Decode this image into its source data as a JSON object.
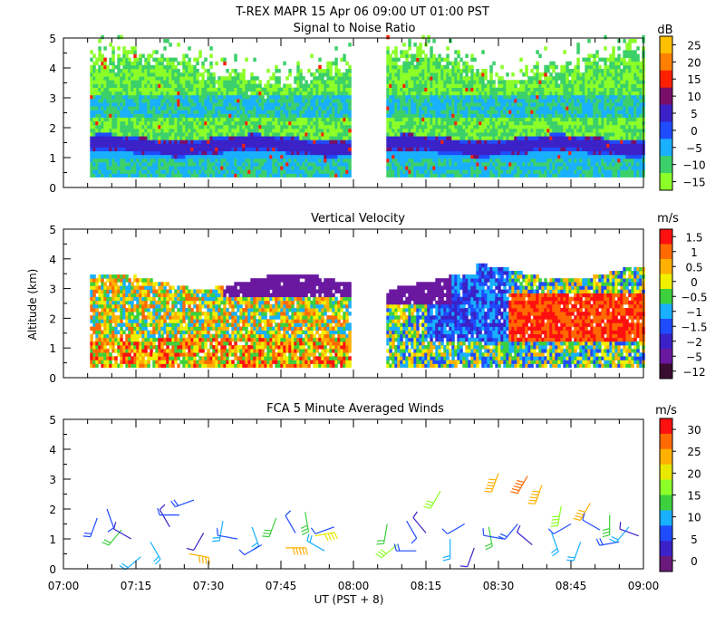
{
  "header": {
    "title": "T-REX   MAPR 15 Apr 06   09:00 UT   01:00   PST"
  },
  "chart_data": [
    {
      "type": "heatmap",
      "title": "Signal to Noise Ratio",
      "ylabel": "",
      "ylim": [
        0,
        5
      ],
      "yticks": [
        "0",
        "1",
        "2",
        "3",
        "4",
        "5"
      ],
      "colorbar": {
        "unit": "dB",
        "labels": [
          "25",
          "20",
          "15",
          "10",
          "5",
          "0",
          "−5",
          "−10",
          "−15"
        ],
        "colors": [
          "#ffc000",
          "#ff8000",
          "#ff2000",
          "#7a0f6a",
          "#3a22c8",
          "#1f4cff",
          "#18b0ff",
          "#3cd06a",
          "#8cff28"
        ]
      },
      "bands": [
        {
          "alt": 4.4,
          "color": "#8cff28"
        },
        {
          "alt": 3.6,
          "color": "#8cff28"
        },
        {
          "alt": 3.0,
          "color": "#3cd06a"
        },
        {
          "alt": 2.6,
          "color": "#18b0ff"
        },
        {
          "alt": 2.1,
          "color": "#8cff28"
        },
        {
          "alt": 1.7,
          "color": "#3cd06a"
        },
        {
          "alt": 1.5,
          "color": "#3a22c8"
        },
        {
          "alt": 1.25,
          "color": "#3a22c8"
        },
        {
          "alt": 0.95,
          "color": "#18b0ff"
        },
        {
          "alt": 0.6,
          "color": "#3cd06a"
        }
      ],
      "data_gaps": [
        [
          59.0,
          66.5
        ]
      ],
      "data_range_x": [
        5.5,
        120
      ]
    },
    {
      "type": "heatmap",
      "title": "Vertical Velocity",
      "ylabel": "Altitude (km)",
      "ylim": [
        0,
        5
      ],
      "yticks": [
        "0",
        "1",
        "2",
        "3",
        "4",
        "5"
      ],
      "colorbar": {
        "unit": "m/s",
        "labels": [
          "1.5",
          "1",
          "0.5",
          "0",
          "−0.5",
          "−1",
          "−1.5",
          "−2",
          "−5",
          "−12"
        ],
        "colors": [
          "#ff1010",
          "#ff6a00",
          "#ffb000",
          "#f0f000",
          "#3cd03c",
          "#18b0ff",
          "#1f4cff",
          "#3a22c8",
          "#6a18a0",
          "#3a0c30"
        ]
      },
      "data_gaps": [
        [
          59.0,
          66.5
        ]
      ],
      "data_range_x": [
        5.5,
        120
      ]
    },
    {
      "type": "scatter",
      "title": "FCA 5 Minute Averaged Winds",
      "xlabel": "UT  (PST + 8)",
      "ylim": [
        0,
        5
      ],
      "yticks": [
        "0",
        "1",
        "2",
        "3",
        "4",
        "5"
      ],
      "x_tick_labels": [
        "07:00",
        "07:15",
        "07:30",
        "07:45",
        "08:00",
        "08:15",
        "08:30",
        "08:45",
        "09:00"
      ],
      "xlim_minutes": [
        0,
        120
      ],
      "colorbar": {
        "unit": "m/s",
        "labels": [
          "30",
          "25",
          "20",
          "15",
          "10",
          "5",
          "0"
        ],
        "colors": [
          "#ff1010",
          "#ff6a00",
          "#ffb000",
          "#e8e800",
          "#8cff28",
          "#3cd03c",
          "#18b0ff",
          "#1f4cff",
          "#3a22c8",
          "#6a1a7a"
        ]
      },
      "wind_barbs": [
        {
          "t": 7,
          "alt": 1.7,
          "speed": 8,
          "dir": 200
        },
        {
          "t": 9,
          "alt": 2.0,
          "speed": 6,
          "dir": 160
        },
        {
          "t": 12,
          "alt": 1.3,
          "speed": 12,
          "dir": 220
        },
        {
          "t": 14,
          "alt": 1.0,
          "speed": 5,
          "dir": 300
        },
        {
          "t": 16,
          "alt": 0.4,
          "speed": 9,
          "dir": 230
        },
        {
          "t": 18,
          "alt": 0.9,
          "speed": 10,
          "dir": 150
        },
        {
          "t": 22,
          "alt": 1.4,
          "speed": 4,
          "dir": 330
        },
        {
          "t": 24,
          "alt": 1.8,
          "speed": 7,
          "dir": 270
        },
        {
          "t": 26,
          "alt": 0.5,
          "speed": 22,
          "dir": 100
        },
        {
          "t": 27,
          "alt": 2.3,
          "speed": 8,
          "dir": 250
        },
        {
          "t": 29,
          "alt": 1.2,
          "speed": 5,
          "dir": 210
        },
        {
          "t": 33,
          "alt": 1.6,
          "speed": 9,
          "dir": 190
        },
        {
          "t": 36,
          "alt": 1.0,
          "speed": 6,
          "dir": 280
        },
        {
          "t": 39,
          "alt": 1.4,
          "speed": 11,
          "dir": 160
        },
        {
          "t": 41,
          "alt": 0.8,
          "speed": 7,
          "dir": 240
        },
        {
          "t": 44,
          "alt": 1.7,
          "speed": 13,
          "dir": 200
        },
        {
          "t": 46,
          "alt": 0.7,
          "speed": 24,
          "dir": 90
        },
        {
          "t": 48,
          "alt": 1.2,
          "speed": 6,
          "dir": 330
        },
        {
          "t": 50,
          "alt": 1.9,
          "speed": 14,
          "dir": 170
        },
        {
          "t": 52,
          "alt": 1.1,
          "speed": 20,
          "dir": 80
        },
        {
          "t": 54,
          "alt": 0.6,
          "speed": 9,
          "dir": 300
        },
        {
          "t": 56,
          "alt": 1.4,
          "speed": 7,
          "dir": 250
        },
        {
          "t": 67,
          "alt": 1.5,
          "speed": 12,
          "dir": 190
        },
        {
          "t": 69,
          "alt": 0.8,
          "speed": 16,
          "dir": 230
        },
        {
          "t": 71,
          "alt": 1.6,
          "speed": 6,
          "dir": 150
        },
        {
          "t": 73,
          "alt": 0.6,
          "speed": 8,
          "dir": 270
        },
        {
          "t": 75,
          "alt": 1.2,
          "speed": 5,
          "dir": 320
        },
        {
          "t": 78,
          "alt": 2.6,
          "speed": 16,
          "dir": 210
        },
        {
          "t": 80,
          "alt": 1.0,
          "speed": 9,
          "dir": 180
        },
        {
          "t": 83,
          "alt": 1.5,
          "speed": 7,
          "dir": 240
        },
        {
          "t": 85,
          "alt": 0.7,
          "speed": 5,
          "dir": 200
        },
        {
          "t": 88,
          "alt": 1.4,
          "speed": 12,
          "dir": 170
        },
        {
          "t": 90,
          "alt": 3.2,
          "speed": 25,
          "dir": 200
        },
        {
          "t": 91,
          "alt": 1.0,
          "speed": 6,
          "dir": 280
        },
        {
          "t": 94,
          "alt": 1.5,
          "speed": 8,
          "dir": 220
        },
        {
          "t": 96,
          "alt": 3.1,
          "speed": 27,
          "dir": 210
        },
        {
          "t": 97,
          "alt": 0.8,
          "speed": 5,
          "dir": 310
        },
        {
          "t": 99,
          "alt": 2.8,
          "speed": 24,
          "dir": 200
        },
        {
          "t": 101,
          "alt": 1.2,
          "speed": 9,
          "dir": 160
        },
        {
          "t": 103,
          "alt": 2.1,
          "speed": 18,
          "dir": 190
        },
        {
          "t": 105,
          "alt": 1.5,
          "speed": 7,
          "dir": 240
        },
        {
          "t": 107,
          "alt": 0.9,
          "speed": 10,
          "dir": 200
        },
        {
          "t": 109,
          "alt": 2.2,
          "speed": 22,
          "dir": 210
        },
        {
          "t": 111,
          "alt": 1.3,
          "speed": 6,
          "dir": 300
        },
        {
          "t": 113,
          "alt": 1.8,
          "speed": 14,
          "dir": 180
        },
        {
          "t": 115,
          "alt": 0.9,
          "speed": 8,
          "dir": 260
        },
        {
          "t": 117,
          "alt": 1.4,
          "speed": 11,
          "dir": 220
        },
        {
          "t": 119,
          "alt": 1.1,
          "speed": 5,
          "dir": 290
        }
      ]
    }
  ]
}
